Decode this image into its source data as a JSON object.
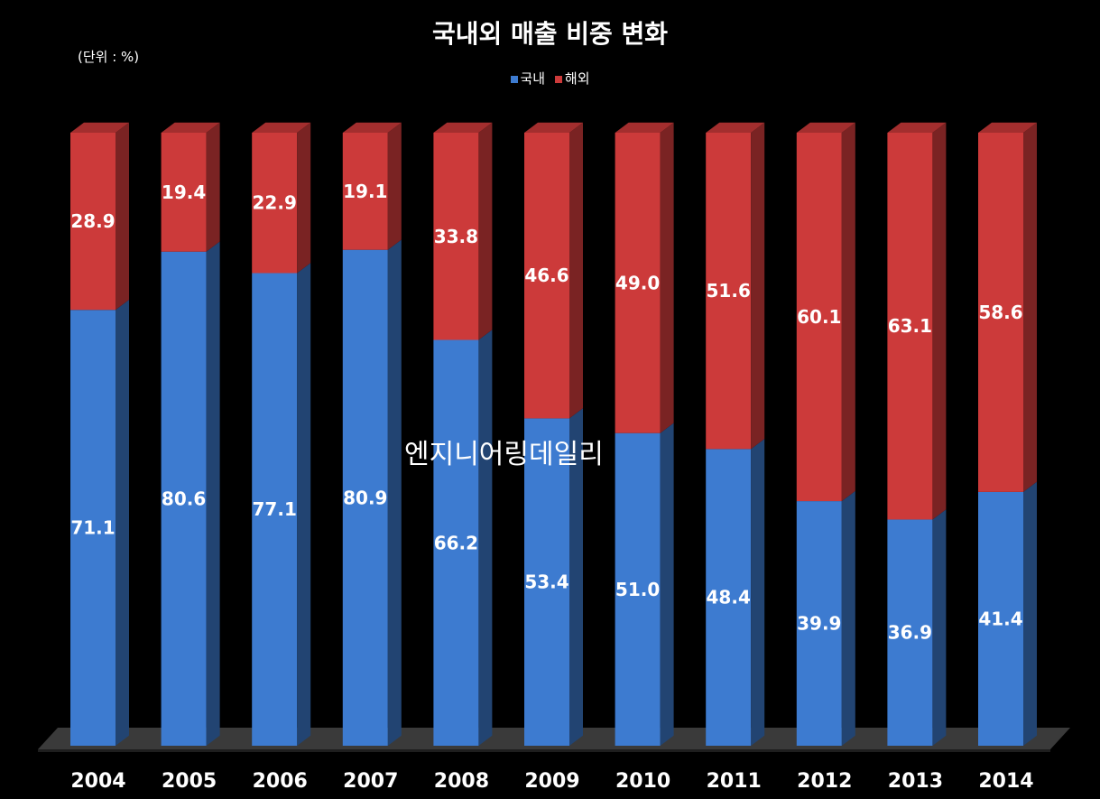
{
  "title": "국내외 매출 비중 변화",
  "unit_note": "(단위 : %)",
  "watermark": "엔지니어링데일리",
  "colors": {
    "domestic": "#3d7bd0",
    "overseas": "#cc3a3a",
    "background": "#000000",
    "text": "#ffffff"
  },
  "chart_data": {
    "type": "bar",
    "stacked": true,
    "title": "국내외 매출 비중 변화",
    "categories": [
      "2004",
      "2005",
      "2006",
      "2007",
      "2008",
      "2009",
      "2010",
      "2011",
      "2012",
      "2013",
      "2014"
    ],
    "series": [
      {
        "name": "국내",
        "values": [
          71.1,
          80.6,
          77.1,
          80.9,
          66.2,
          53.4,
          51.0,
          48.4,
          39.9,
          36.9,
          41.4
        ]
      },
      {
        "name": "해외",
        "values": [
          28.9,
          19.4,
          22.9,
          19.1,
          33.8,
          46.6,
          49.0,
          51.6,
          60.1,
          63.1,
          58.6
        ]
      }
    ],
    "ylim": [
      0,
      100
    ],
    "grid": false,
    "legend": "top"
  }
}
